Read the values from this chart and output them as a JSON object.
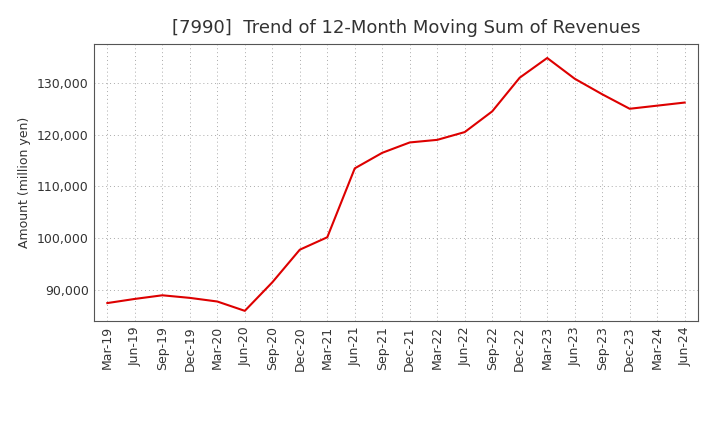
{
  "title": "[7990]  Trend of 12-Month Moving Sum of Revenues",
  "ylabel": "Amount (million yen)",
  "line_color": "#dd0000",
  "background_color": "#ffffff",
  "grid_color": "#aaaaaa",
  "x_labels": [
    "Mar-19",
    "Jun-19",
    "Sep-19",
    "Dec-19",
    "Mar-20",
    "Jun-20",
    "Sep-20",
    "Dec-20",
    "Mar-21",
    "Jun-21",
    "Sep-21",
    "Dec-21",
    "Mar-22",
    "Jun-22",
    "Sep-22",
    "Dec-22",
    "Mar-23",
    "Jun-23",
    "Sep-23",
    "Dec-23",
    "Mar-24",
    "Jun-24"
  ],
  "y_values": [
    87500,
    88300,
    89000,
    88500,
    87800,
    86000,
    91500,
    97800,
    100200,
    113500,
    116500,
    118500,
    119000,
    120500,
    124500,
    131000,
    134800,
    130800,
    127800,
    125000,
    125600,
    126200
  ],
  "ylim_min": 84000,
  "ylim_max": 137500,
  "yticks": [
    90000,
    100000,
    110000,
    120000,
    130000
  ],
  "title_fontsize": 13,
  "axis_fontsize": 9,
  "ylabel_fontsize": 9
}
